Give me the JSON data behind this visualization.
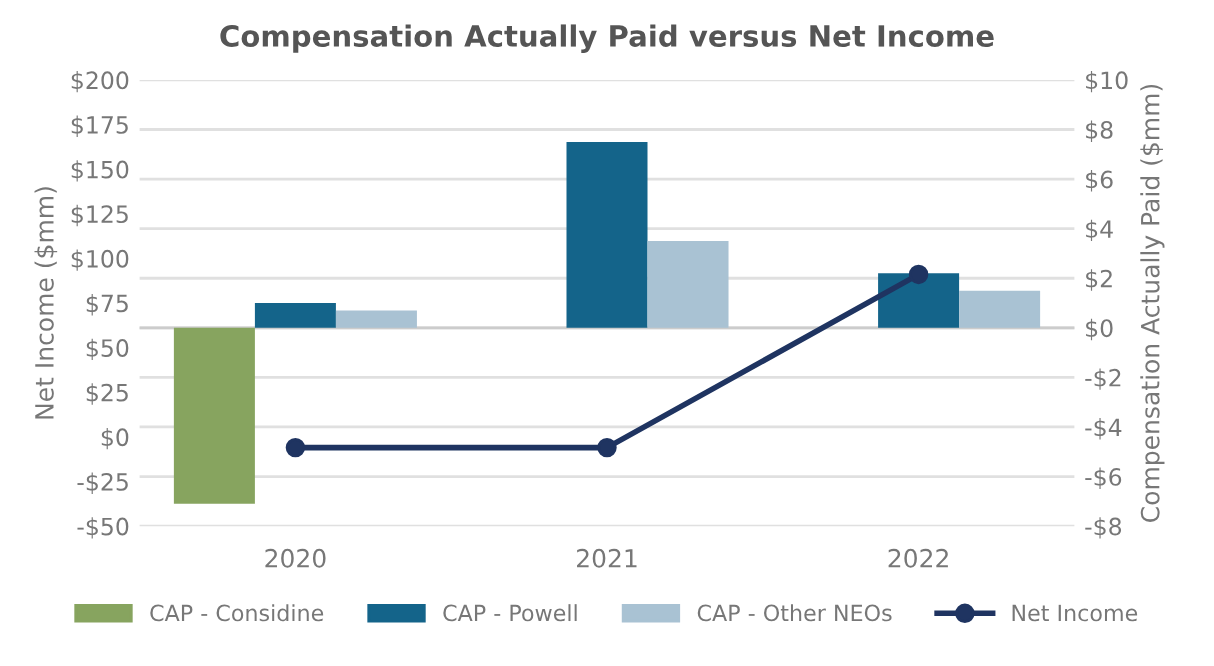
{
  "chart_data": {
    "type": "bar",
    "title": "Compensation Actually Paid versus Net Income",
    "categories": [
      "2020",
      "2021",
      "2022"
    ],
    "ylabel": "Net Income ($mm)",
    "y2label": "Compensation Actually Paid ($mm)",
    "series": [
      {
        "name": "CAP - Considine",
        "color": "#87a45f",
        "values": [
          -7.1,
          null,
          null
        ],
        "axis": "y2"
      },
      {
        "name": "CAP - Powell",
        "color": "#14648a",
        "values": [
          1.0,
          7.5,
          2.2
        ],
        "axis": "y2"
      },
      {
        "name": "CAP - Other NEOs",
        "color": "#a9c2d3",
        "values": [
          0.7,
          3.5,
          1.5
        ],
        "axis": "y2"
      },
      {
        "name": "Net Income",
        "type": "line",
        "color": "#1f3461",
        "values": [
          -6,
          -6,
          91
        ],
        "marker": "circle"
      }
    ],
    "ylim": [
      -50,
      200
    ],
    "yticks": [
      {
        "value": -50,
        "label": "-$50"
      },
      {
        "value": -25,
        "label": "-$25"
      },
      {
        "value": 0,
        "label": "$0"
      },
      {
        "value": 25,
        "label": "$25"
      },
      {
        "value": 50,
        "label": "$50"
      },
      {
        "value": 75,
        "label": "$75"
      },
      {
        "value": 100,
        "label": "$100"
      },
      {
        "value": 125,
        "label": "$125"
      },
      {
        "value": 150,
        "label": "$150"
      },
      {
        "value": 175,
        "label": "$175"
      },
      {
        "value": 200,
        "label": "$200"
      }
    ],
    "y2lim": [
      -8,
      10
    ],
    "y2ticks": [
      {
        "value": -8,
        "label": "-$8"
      },
      {
        "value": -6,
        "label": "-$6"
      },
      {
        "value": -4,
        "label": "-$4"
      },
      {
        "value": -2,
        "label": "-$2"
      },
      {
        "value": 0,
        "label": "$0"
      },
      {
        "value": 2,
        "label": "$2"
      },
      {
        "value": 4,
        "label": "$4"
      },
      {
        "value": 6,
        "label": "$6"
      },
      {
        "value": 8,
        "label": "$8"
      },
      {
        "value": 10,
        "label": "$10"
      }
    ],
    "grid": "y",
    "legend": "bottom"
  }
}
